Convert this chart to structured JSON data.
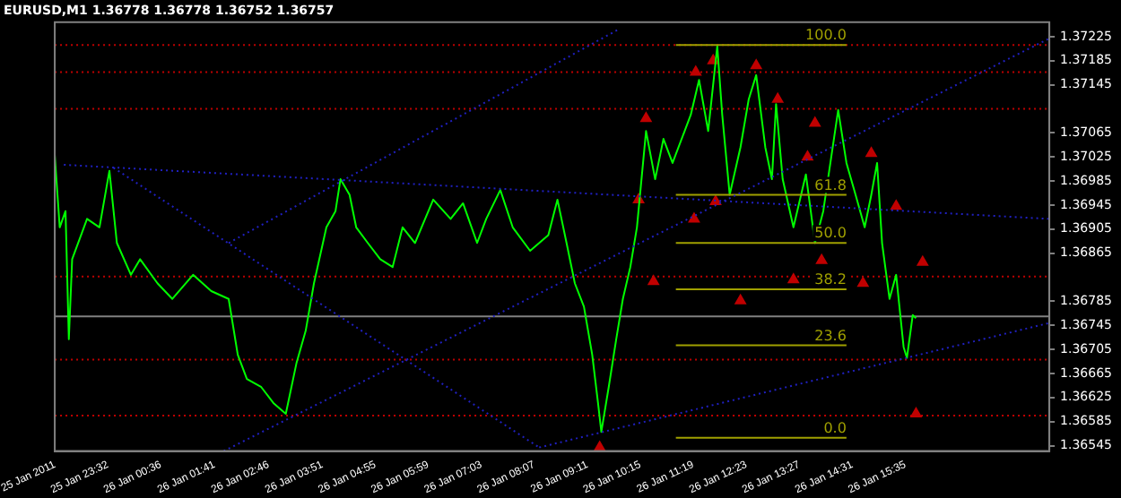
{
  "chart_data": {
    "type": "line",
    "title": "EURUSD,M1 1.36778 1.36778 1.36752 1.36757",
    "marker": "none",
    "xlim": [
      "2011-01-25T22:28",
      "2011-01-26T18:29"
    ],
    "xticks": [
      {
        "value": "2011-01-25T22:28",
        "label": "25 Jan 2011"
      },
      {
        "value": "2011-01-25T23:32",
        "label": "25 Jan 23:32"
      },
      {
        "value": "2011-01-26T00:36",
        "label": "26 Jan 00:36"
      },
      {
        "value": "2011-01-26T01:41",
        "label": "26 Jan 01:41"
      },
      {
        "value": "2011-01-26T02:46",
        "label": "26 Jan 02:46"
      },
      {
        "value": "2011-01-26T03:51",
        "label": "26 Jan 03:51"
      },
      {
        "value": "2011-01-26T04:55",
        "label": "26 Jan 04:55"
      },
      {
        "value": "2011-01-26T05:59",
        "label": "26 Jan 05:59"
      },
      {
        "value": "2011-01-26T07:03",
        "label": "26 Jan 07:03"
      },
      {
        "value": "2011-01-26T08:07",
        "label": "26 Jan 08:07"
      },
      {
        "value": "2011-01-26T09:11",
        "label": "26 Jan 09:11"
      },
      {
        "value": "2011-01-26T10:15",
        "label": "26 Jan 10:15"
      },
      {
        "value": "2011-01-26T11:19",
        "label": "26 Jan 11:19"
      },
      {
        "value": "2011-01-26T12:23",
        "label": "26 Jan 12:23"
      },
      {
        "value": "2011-01-26T13:27",
        "label": "26 Jan 13:27"
      },
      {
        "value": "2011-01-26T14:31",
        "label": "26 Jan 14:31"
      },
      {
        "value": "2011-01-26T15:35",
        "label": "26 Jan 15:35"
      }
    ],
    "ylim": [
      1.36536,
      1.37249
    ],
    "yticks": [
      1.36545,
      1.36585,
      1.36625,
      1.36665,
      1.36705,
      1.36745,
      1.36785,
      1.36865,
      1.36905,
      1.36945,
      1.36985,
      1.37025,
      1.37065,
      1.37145,
      1.37185,
      1.37225
    ],
    "ref_lines": [
      {
        "axis": "y",
        "value": 1.37211,
        "color": "#c00000",
        "line_style": "dotted"
      },
      {
        "axis": "y",
        "value": 1.37166,
        "color": "#c00000",
        "line_style": "dotted"
      },
      {
        "axis": "y",
        "value": 1.37105,
        "color": "#c00000",
        "line_style": "dotted"
      },
      {
        "axis": "y",
        "value": 1.36826,
        "color": "#c00000",
        "line_style": "dotted"
      },
      {
        "axis": "y",
        "value": 1.3676,
        "color": "#808080",
        "line_style": "solid"
      },
      {
        "axis": "y",
        "value": 1.36688,
        "color": "#c00000",
        "line_style": "dotted"
      },
      {
        "axis": "y",
        "value": 1.36595,
        "color": "#c00000",
        "line_style": "dotted"
      }
    ],
    "series": [
      {
        "color": "#2020c0",
        "line_style": "dotted",
        "x": [
          "2011-01-25T22:39",
          "2011-01-26T18:29"
        ],
        "values": [
          1.37012,
          1.36922
        ]
      },
      {
        "color": "#2020c0",
        "line_style": "dotted",
        "x": [
          "2011-01-25T23:39",
          "2011-01-26T08:13"
        ],
        "values": [
          1.37007,
          1.36542
        ]
      },
      {
        "color": "#2020c0",
        "line_style": "dotted",
        "x": [
          "2011-01-26T01:58",
          "2011-01-26T09:50"
        ],
        "values": [
          1.36882,
          1.37238
        ]
      },
      {
        "color": "#2020c0",
        "line_style": "dotted",
        "x": [
          "2011-01-26T01:52",
          "2011-01-26T18:29"
        ],
        "values": [
          1.36536,
          1.37222
        ]
      },
      {
        "color": "#2020c0",
        "line_style": "dotted",
        "x": [
          "2011-01-26T08:13",
          "2011-01-26T18:29"
        ],
        "values": [
          1.36542,
          1.36749
        ]
      },
      {
        "name": "0.0",
        "color": "#a0a000",
        "line_style": "solid",
        "x": [
          "2011-01-26T10:58",
          "2011-01-26T14:24"
        ],
        "values": [
          1.36558,
          1.36558
        ]
      },
      {
        "name": "23.6",
        "color": "#a0a000",
        "line_style": "solid",
        "x": [
          "2011-01-26T10:58",
          "2011-01-26T14:24"
        ],
        "values": [
          1.36712,
          1.36712
        ]
      },
      {
        "name": "38.2",
        "color": "#a0a000",
        "line_style": "solid",
        "x": [
          "2011-01-26T10:58",
          "2011-01-26T14:24"
        ],
        "values": [
          1.36805,
          1.36805
        ]
      },
      {
        "name": "50.0",
        "color": "#a0a000",
        "line_style": "solid",
        "x": [
          "2011-01-26T10:58",
          "2011-01-26T14:24"
        ],
        "values": [
          1.36882,
          1.36882
        ]
      },
      {
        "name": "61.8",
        "color": "#a0a000",
        "line_style": "solid",
        "x": [
          "2011-01-26T10:58",
          "2011-01-26T14:24"
        ],
        "values": [
          1.36962,
          1.36962
        ]
      },
      {
        "name": "100.0",
        "color": "#a0a000",
        "line_style": "solid",
        "x": [
          "2011-01-26T10:58",
          "2011-01-26T14:24"
        ],
        "values": [
          1.37211,
          1.37211
        ]
      },
      {
        "color": "#00ff00",
        "line_style": "solid",
        "x": [
          "2011-01-25T22:28",
          "2011-01-25T22:34",
          "2011-01-25T22:41",
          "2011-01-25T22:45",
          "2011-01-25T22:49",
          "2011-01-25T23:07",
          "2011-01-25T23:22",
          "2011-01-25T23:34",
          "2011-01-25T23:43",
          "2011-01-26T00:00",
          "2011-01-26T00:11",
          "2011-01-26T00:32",
          "2011-01-26T00:50",
          "2011-01-26T01:15",
          "2011-01-26T01:37",
          "2011-01-26T01:58",
          "2011-01-26T02:09",
          "2011-01-26T02:20",
          "2011-01-26T02:37",
          "2011-01-26T02:52",
          "2011-01-26T03:07",
          "2011-01-26T03:20",
          "2011-01-26T03:31",
          "2011-01-26T03:41",
          "2011-01-26T03:56",
          "2011-01-26T04:07",
          "2011-01-26T04:13",
          "2011-01-26T04:24",
          "2011-01-26T04:32",
          "2011-01-26T04:46",
          "2011-01-26T05:01",
          "2011-01-26T05:16",
          "2011-01-26T05:28",
          "2011-01-26T05:43",
          "2011-01-26T06:05",
          "2011-01-26T06:26",
          "2011-01-26T06:41",
          "2011-01-26T06:58",
          "2011-01-26T07:09",
          "2011-01-26T07:26",
          "2011-01-26T07:41",
          "2011-01-26T08:02",
          "2011-01-26T08:24",
          "2011-01-26T08:35",
          "2011-01-26T08:46",
          "2011-01-26T08:56",
          "2011-01-26T09:07",
          "2011-01-26T09:17",
          "2011-01-26T09:24",
          "2011-01-26T09:28",
          "2011-01-26T09:37",
          "2011-01-26T09:46",
          "2011-01-26T09:54",
          "2011-01-26T10:03",
          "2011-01-26T10:11",
          "2011-01-26T10:22",
          "2011-01-26T10:33",
          "2011-01-26T10:43",
          "2011-01-26T10:54",
          "2011-01-26T11:16",
          "2011-01-26T11:26",
          "2011-01-26T11:37",
          "2011-01-26T11:48",
          "2011-01-26T11:54",
          "2011-01-26T12:03",
          "2011-01-26T12:16",
          "2011-01-26T12:26",
          "2011-01-26T12:35",
          "2011-01-26T12:46",
          "2011-01-26T12:54",
          "2011-01-26T12:59",
          "2011-01-26T13:07",
          "2011-01-26T13:20",
          "2011-01-26T13:35",
          "2011-01-26T13:46",
          "2011-01-26T13:56",
          "2011-01-26T14:14",
          "2011-01-26T14:24",
          "2011-01-26T14:35",
          "2011-01-26T14:46",
          "2011-01-26T14:54",
          "2011-01-26T15:01",
          "2011-01-26T15:07",
          "2011-01-26T15:16",
          "2011-01-26T15:24",
          "2011-01-26T15:33",
          "2011-01-26T15:37",
          "2011-01-26T15:44",
          "2011-01-26T15:48"
        ],
        "values": [
          1.37028,
          1.36908,
          1.36935,
          1.36722,
          1.36855,
          1.36922,
          1.36908,
          1.37002,
          1.36882,
          1.36829,
          1.36855,
          1.36815,
          1.36789,
          1.36829,
          1.36802,
          1.36789,
          1.36696,
          1.36656,
          1.36643,
          1.36616,
          1.36598,
          1.36683,
          1.36736,
          1.36815,
          1.36908,
          1.36935,
          1.36988,
          1.36962,
          1.36908,
          1.36882,
          1.36855,
          1.36842,
          1.36908,
          1.36882,
          1.36954,
          1.36922,
          1.36948,
          1.36882,
          1.36922,
          1.3697,
          1.36908,
          1.36869,
          1.36895,
          1.36954,
          1.36882,
          1.36815,
          1.36776,
          1.36696,
          1.36616,
          1.36568,
          1.36643,
          1.36722,
          1.36789,
          1.36842,
          1.36908,
          1.37068,
          1.36988,
          1.37055,
          1.37015,
          1.37095,
          1.37153,
          1.37068,
          1.37209,
          1.37095,
          1.36962,
          1.37041,
          1.37121,
          1.37161,
          1.37041,
          1.36988,
          1.37113,
          1.36988,
          1.36908,
          1.36996,
          1.36882,
          1.36935,
          1.37103,
          1.37015,
          1.36962,
          1.36908,
          1.36962,
          1.37015,
          1.36882,
          1.36789,
          1.36829,
          1.36709,
          1.36691,
          1.36762,
          1.36757
        ]
      },
      {
        "type": "scatter",
        "color": "#c00000",
        "marker": "triangle",
        "x": [
          "2011-01-26T10:22",
          "2011-01-26T11:22",
          "2011-01-26T11:43",
          "2011-01-26T12:35",
          "2011-01-26T13:01",
          "2011-01-26T13:46",
          "2011-01-26T13:37",
          "2011-01-26T14:54",
          "2011-01-26T15:24",
          "2011-01-26T13:54",
          "2011-01-26T15:56"
        ],
        "values": [
          1.37089,
          1.37166,
          1.37185,
          1.37177,
          1.37121,
          1.37081,
          1.37025,
          1.37031,
          1.36943,
          1.36853,
          1.3685
        ]
      },
      {
        "type": "scatter",
        "color": "#c00000",
        "marker": "triangle",
        "x": [
          "2011-01-26T10:13",
          "2011-01-26T11:20",
          "2011-01-26T11:46",
          "2011-01-26T10:31",
          "2011-01-26T12:16",
          "2011-01-26T13:20",
          "2011-01-26T14:44",
          "2011-01-26T15:48",
          "2011-01-26T09:26"
        ],
        "values": [
          1.36954,
          1.36922,
          1.36951,
          1.36818,
          1.36786,
          1.36821,
          1.36815,
          1.36598,
          1.36542
        ]
      }
    ]
  }
}
